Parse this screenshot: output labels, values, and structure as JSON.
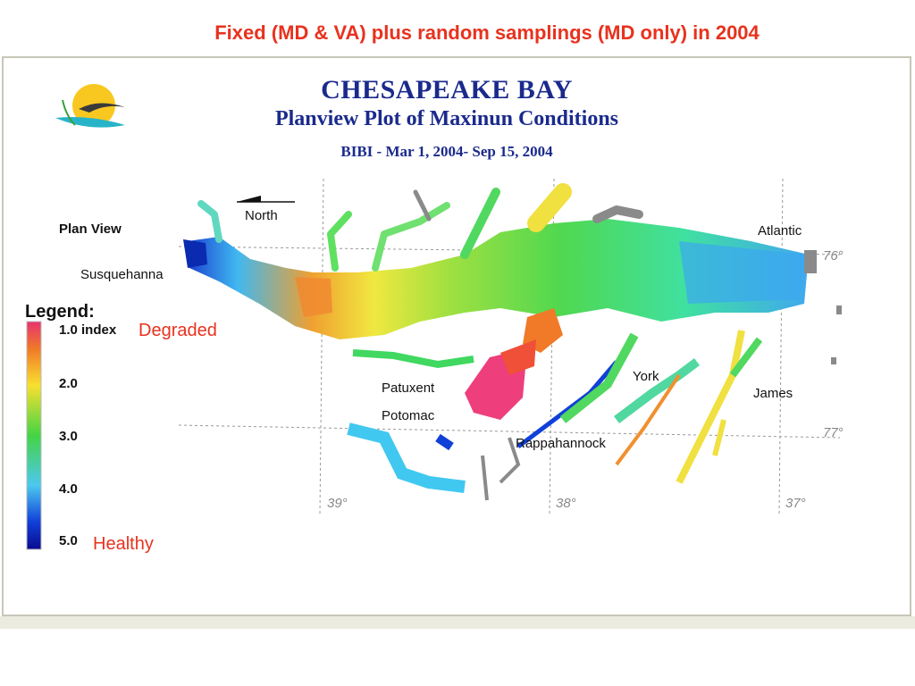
{
  "slide": {
    "title": "Fixed (MD & VA) plus random samplings (MD only) in 2004"
  },
  "figure": {
    "title": "CHESAPEAKE BAY",
    "subtitle": "Planview Plot of Maxinun Conditions",
    "metric": "BIBI - Mar 1, 2004- Sep 15, 2004"
  },
  "map_labels": {
    "plan_view": "Plan View",
    "north": "North",
    "susquehanna": "Susquehanna",
    "atlantic": "Atlantic",
    "patuxent": "Patuxent",
    "potomac": "Potomac",
    "york": "York",
    "james": "James",
    "rappahannock": "Rappahannock"
  },
  "coordinates": {
    "lat_76": "76°",
    "lat_77": "77°",
    "lon_39": "39°",
    "lon_38": "38°",
    "lon_37": "37°"
  },
  "legend": {
    "title": "Legend:",
    "ticks": [
      "1.0 index",
      "2.0",
      "3.0",
      "4.0",
      "5.0"
    ],
    "degraded_label": "Degraded",
    "healthy_label": "Healthy",
    "colors": [
      "#e8326e",
      "#f07a28",
      "#f8e030",
      "#44d444",
      "#4cc8f0",
      "#1040d8",
      "#0a0a90"
    ]
  },
  "colors": {
    "accent": "#e8321e",
    "header": "#1a2a8c",
    "land_gray": "#8a8a8a"
  }
}
